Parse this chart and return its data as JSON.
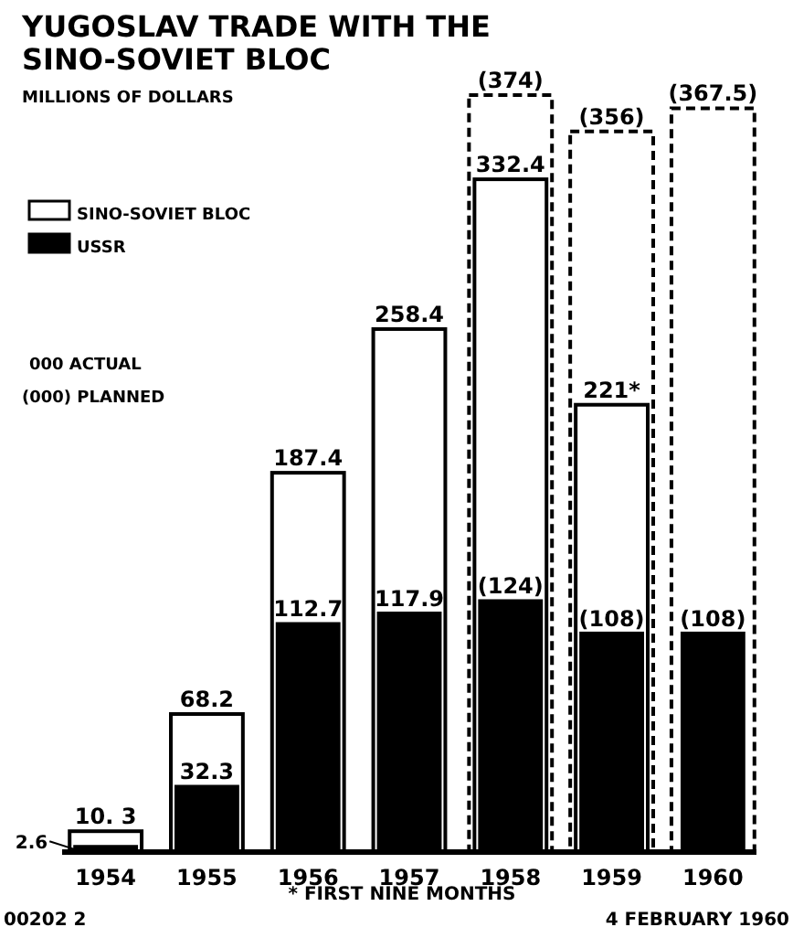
{
  "chart_data": {
    "type": "bar",
    "title": "YUGOSLAV TRADE WITH THE SINO-SOVIET BLOC",
    "subtitle": "MILLIONS OF DOLLARS",
    "categories": [
      "1954",
      "1955",
      "1956",
      "1957",
      "1958",
      "1959",
      "1960"
    ],
    "series": [
      {
        "color": "#ffffff",
        "line_style": "dashed",
        "values": [
          null,
          null,
          null,
          null,
          374,
          356,
          367.5
        ],
        "value_labels": [
          null,
          null,
          null,
          null,
          "(374)",
          "(356)",
          "(367.5)"
        ]
      },
      {
        "name": "SINO-SOVIET BLOC",
        "color": "#ffffff",
        "values": [
          10.3,
          68.2,
          187.4,
          258.4,
          332.4,
          221,
          null
        ],
        "value_labels": [
          "10. 3",
          "68.2",
          "187.4",
          "258.4",
          "332.4",
          "221*",
          null
        ]
      },
      {
        "name": "USSR",
        "color": "#000000",
        "values": [
          2.6,
          32.3,
          112.7,
          117.9,
          124,
          108,
          108
        ],
        "value_labels": [
          "2.6",
          "32.3",
          "112.7",
          "117.9",
          "(124)",
          "(108)",
          "(108)"
        ]
      }
    ],
    "legend": "top left",
    "annotations": [
      "000 ACTUAL",
      "(000) PLANNED",
      "* FIRST NINE MONTHS",
      "00202 2",
      "4 FEBRUARY 1960"
    ]
  }
}
